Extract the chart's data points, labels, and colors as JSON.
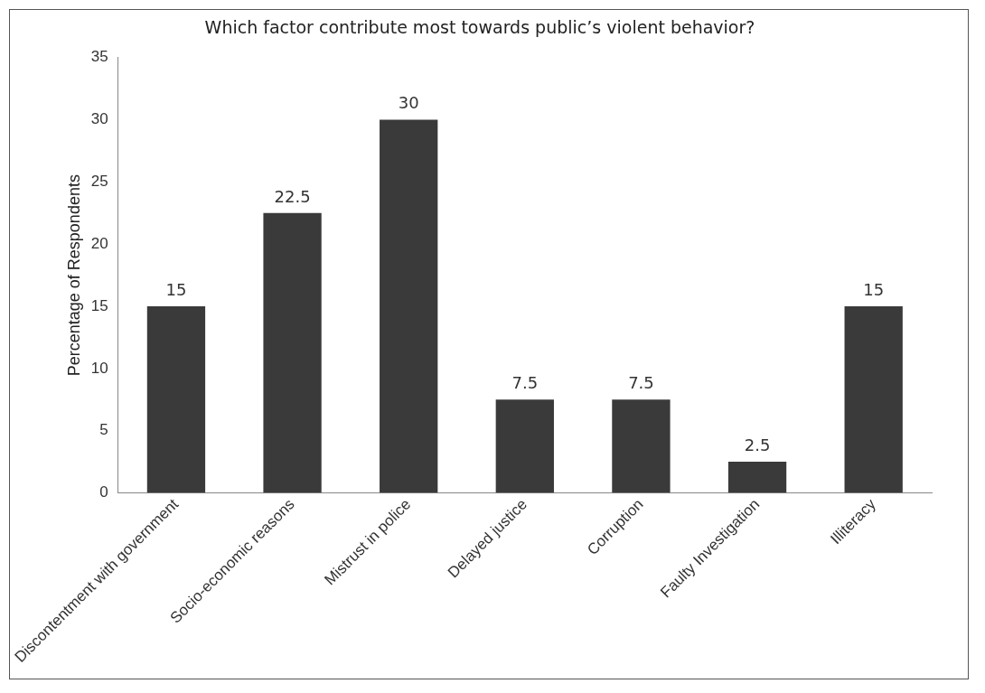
{
  "chart_data": {
    "type": "bar",
    "title": "Which factor contribute most towards public’s violent behavior?",
    "ylabel": "Percentage of Respondents",
    "categories": [
      "Discontentment with government",
      "Socio-economic reasons",
      "Mistrust in police",
      "Delayed justice",
      "Corruption",
      "Faulty Investigation",
      "Illiteracy"
    ],
    "values": [
      15,
      22.5,
      30,
      7.5,
      7.5,
      2.5,
      15
    ],
    "color": "#3a3a3a",
    "ylim": [
      0,
      35
    ],
    "yticks": [
      0,
      5,
      10,
      15,
      20,
      25,
      30,
      35
    ],
    "grid": false,
    "data_labels": true,
    "legend": false
  }
}
